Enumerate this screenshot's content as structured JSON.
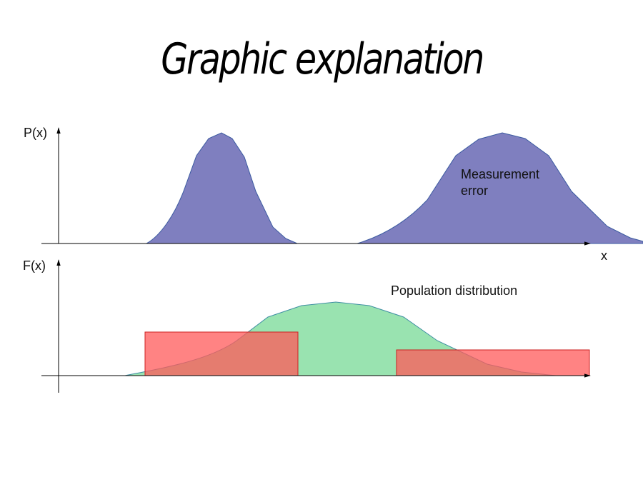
{
  "title": "Graphic explanation",
  "top_panel": {
    "y_label": "P(x)",
    "x_label": "x",
    "annotation_line1": "Measurement",
    "annotation_line2": "error",
    "fill_color": "#7f7fbf",
    "stroke_color": "#3b5aa0"
  },
  "bottom_panel": {
    "y_label": "F(x)",
    "annotation": "Population distribution",
    "fill_color": "#99e3b0",
    "stroke_color": "#3f8fa3",
    "box_fill": "#ff5a5a",
    "box_stroke": "#cc2020"
  }
}
